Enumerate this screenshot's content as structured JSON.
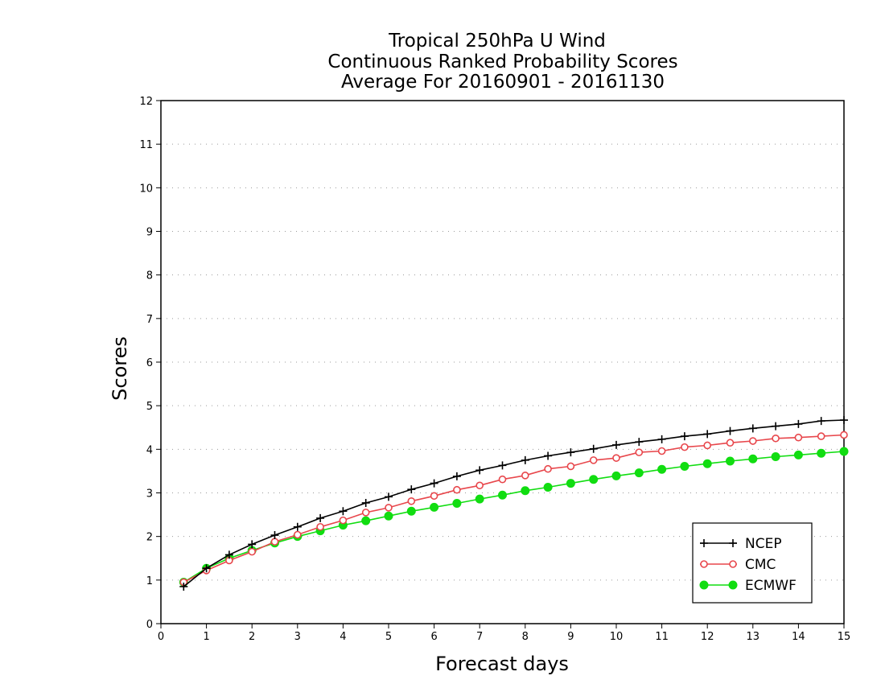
{
  "chart_data": {
    "type": "line",
    "title_lines": [
      "Tropical 250hPa U Wind",
      "Continuous Ranked Probability Scores",
      "Average For 20160901 - 20161130"
    ],
    "xlabel": "Forecast days",
    "ylabel": "Scores",
    "xlim": [
      0,
      15
    ],
    "ylim": [
      0,
      12
    ],
    "xticks": [
      0,
      1,
      2,
      3,
      4,
      5,
      6,
      7,
      8,
      9,
      10,
      11,
      12,
      13,
      14,
      15
    ],
    "yticks": [
      0,
      1,
      2,
      3,
      4,
      5,
      6,
      7,
      8,
      9,
      10,
      11,
      12
    ],
    "grid": "horizontal dotted",
    "legend_position": "bottom-right",
    "x": [
      0.5,
      1,
      1.5,
      2,
      2.5,
      3,
      3.5,
      4,
      4.5,
      5,
      5.5,
      6,
      6.5,
      7,
      7.5,
      8,
      8.5,
      9,
      9.5,
      10,
      10.5,
      11,
      11.5,
      12,
      12.5,
      13,
      13.5,
      14,
      14.5,
      15
    ],
    "series": [
      {
        "name": "NCEP",
        "color": "#000000",
        "marker": "plus",
        "values": [
          0.85,
          1.27,
          1.58,
          1.82,
          2.03,
          2.22,
          2.42,
          2.58,
          2.77,
          2.91,
          3.08,
          3.22,
          3.38,
          3.52,
          3.63,
          3.75,
          3.85,
          3.93,
          4.01,
          4.1,
          4.17,
          4.23,
          4.3,
          4.35,
          4.42,
          4.48,
          4.53,
          4.58,
          4.65,
          4.67
        ]
      },
      {
        "name": "CMC",
        "color": "#e8474c",
        "marker": "open-circle",
        "values": [
          0.95,
          1.22,
          1.45,
          1.65,
          1.88,
          2.04,
          2.22,
          2.37,
          2.55,
          2.66,
          2.81,
          2.93,
          3.07,
          3.17,
          3.31,
          3.4,
          3.55,
          3.61,
          3.75,
          3.8,
          3.93,
          3.96,
          4.05,
          4.09,
          4.15,
          4.19,
          4.25,
          4.27,
          4.3,
          4.33
        ]
      },
      {
        "name": "ECMWF",
        "color": "#11dd11",
        "marker": "filled-circle",
        "values": [
          0.95,
          1.27,
          1.5,
          1.68,
          1.85,
          2.0,
          2.13,
          2.26,
          2.36,
          2.47,
          2.58,
          2.67,
          2.76,
          2.86,
          2.95,
          3.05,
          3.13,
          3.22,
          3.31,
          3.39,
          3.46,
          3.54,
          3.61,
          3.67,
          3.73,
          3.78,
          3.83,
          3.87,
          3.91,
          3.95
        ]
      }
    ]
  }
}
